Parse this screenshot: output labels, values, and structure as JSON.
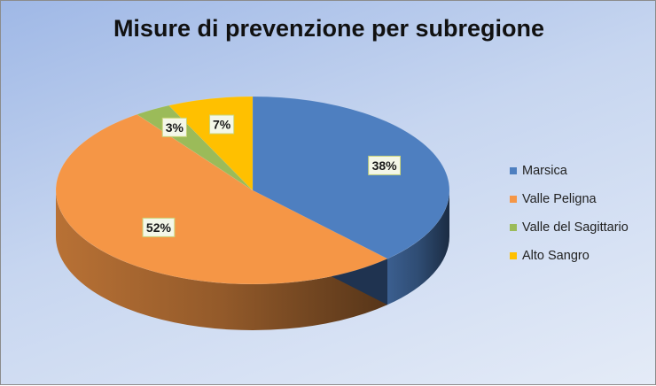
{
  "chart_data": {
    "type": "pie",
    "title": "Misure di prevenzione per subregione",
    "categories": [
      "Marsica",
      "Valle Peligna",
      "Valle del Sagittario",
      "Alto Sangro"
    ],
    "values": [
      38,
      52,
      3,
      7
    ],
    "labels": [
      "38%",
      "52%",
      "3%",
      "7%"
    ],
    "colors": [
      "#4e7fc0",
      "#f59646",
      "#9bbb59",
      "#ffc000"
    ],
    "legend_position": "right",
    "style": "3d"
  }
}
